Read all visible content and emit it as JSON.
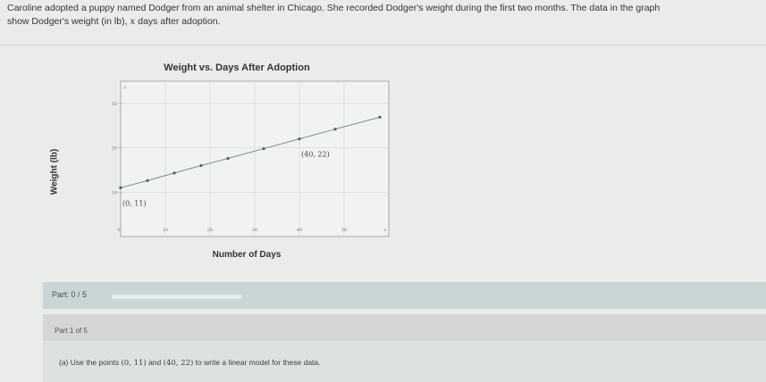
{
  "prompt": {
    "line1": "Caroline adopted a puppy named Dodger from an animal shelter in Chicago. She recorded Dodger's weight during the first two months. The data in the graph",
    "line2_a": "show Dodger's weight (in lb), ",
    "line2_var": "x",
    "line2_b": " days after adoption."
  },
  "chart_data": {
    "type": "scatter",
    "title": "Weight vs. Days After Adoption",
    "xlabel": "Number of Days",
    "ylabel": "Weight (lb)",
    "x_axis_letter": "x",
    "y_axis_letter": "y",
    "xlim": [
      0,
      60
    ],
    "ylim": [
      0,
      35
    ],
    "x_ticks": [
      "10",
      "20",
      "30",
      "40",
      "50"
    ],
    "y_ticks": [
      "10",
      "20",
      "30"
    ],
    "origin_label": "0",
    "grid": true,
    "series": [
      {
        "x": [
          0,
          6,
          12,
          18,
          24,
          32,
          40,
          48,
          58
        ],
        "y": [
          11,
          12.6,
          14.3,
          16,
          17.6,
          19.8,
          22,
          24.2,
          26.9
        ],
        "line": true
      }
    ],
    "annotations": [
      {
        "text": "(0, 11)",
        "x": 0,
        "y": 11
      },
      {
        "text": "(40, 22)",
        "x": 40,
        "y": 22
      }
    ]
  },
  "part_bar": {
    "label": "Part: 0 / 5",
    "progress": 0
  },
  "part_panel": {
    "header": "Part 1 of 5",
    "question_a": "(a) Use the points ",
    "point1": "(0, 11)",
    "question_b": " and ",
    "point2": "(40, 22)",
    "question_c": " to write a linear model for these data."
  },
  "colors": {
    "background": "#e9ecea",
    "part_bar": "#c9d6d5",
    "data_line": "#7a8c96",
    "grid": "#d4d7d5"
  }
}
